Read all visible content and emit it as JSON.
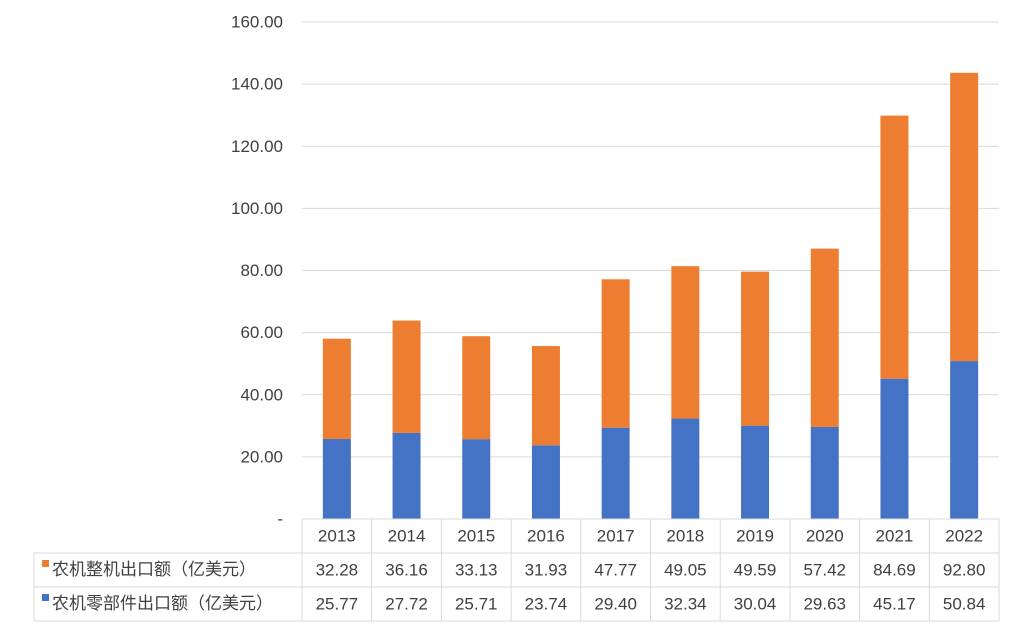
{
  "chart_data": {
    "type": "bar",
    "stacked": true,
    "categories": [
      "2013",
      "2014",
      "2015",
      "2016",
      "2017",
      "2018",
      "2019",
      "2020",
      "2021",
      "2022"
    ],
    "series": [
      {
        "name": "农机零部件出口额（亿美元）",
        "color": "#4472C4",
        "values": [
          25.77,
          27.72,
          25.71,
          23.74,
          29.4,
          32.34,
          30.04,
          29.63,
          45.17,
          50.84
        ]
      },
      {
        "name": "农机整机出口额（亿美元）",
        "color": "#ED7D31",
        "values": [
          32.28,
          36.16,
          33.13,
          31.93,
          47.77,
          49.05,
          49.59,
          57.42,
          84.69,
          92.8
        ]
      }
    ],
    "y_ticks": [
      "-",
      "20.00",
      "40.00",
      "60.00",
      "80.00",
      "100.00",
      "120.00",
      "140.00",
      "160.00"
    ],
    "ylim": [
      0,
      160
    ],
    "data_table": true,
    "table_row_order": [
      "农机整机出口额（亿美元）",
      "农机零部件出口额（亿美元）"
    ],
    "grid": true
  }
}
